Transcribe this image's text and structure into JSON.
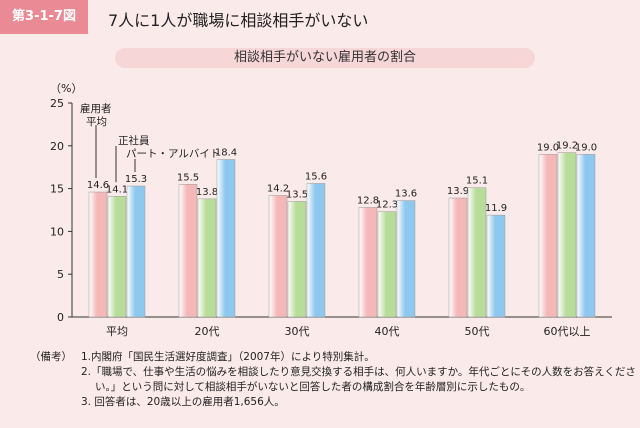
{
  "header": {
    "badge": "第3-1-7図",
    "title": "7人に1人が職場に相談相手がいない",
    "subtitle": "相談相手がいない雇用者の割合"
  },
  "chart_data": {
    "type": "bar",
    "ylabel": "（%）",
    "ylim": [
      0,
      25
    ],
    "yticks": [
      0,
      5,
      10,
      15,
      20,
      25
    ],
    "categories": [
      "平均",
      "20代",
      "30代",
      "40代",
      "50代",
      "60代以上"
    ],
    "series": [
      {
        "name": "雇用者平均",
        "color": "#f4b8b8",
        "values": [
          14.6,
          15.5,
          14.2,
          12.8,
          13.9,
          19.0
        ]
      },
      {
        "name": "正社員",
        "color": "#b8dc9a",
        "values": [
          14.1,
          13.8,
          13.5,
          12.3,
          15.1,
          19.2
        ]
      },
      {
        "name": "パート・アルバイト",
        "color": "#8fc8ee",
        "values": [
          15.3,
          18.4,
          15.6,
          13.6,
          11.9,
          19.0
        ]
      }
    ],
    "legend_labels": [
      "雇用者",
      "平均",
      "正社員",
      "パート・アルバイト"
    ],
    "grid": false
  },
  "notes": {
    "label": "（備考）",
    "lines": [
      "1.内閣府「国民生活選好度調査」（2007年）により特別集計。",
      "2.「職場で、仕事や生活の悩みを相談したり意見交換する相手は、何人いますか。年代ごとにその人数をお答えください。」という問に対して相談相手がいないと回答した者の構成割合を年齢層別に示したもの。",
      "3. 回答者は、20歳以上の雇用者1,656人。"
    ]
  }
}
